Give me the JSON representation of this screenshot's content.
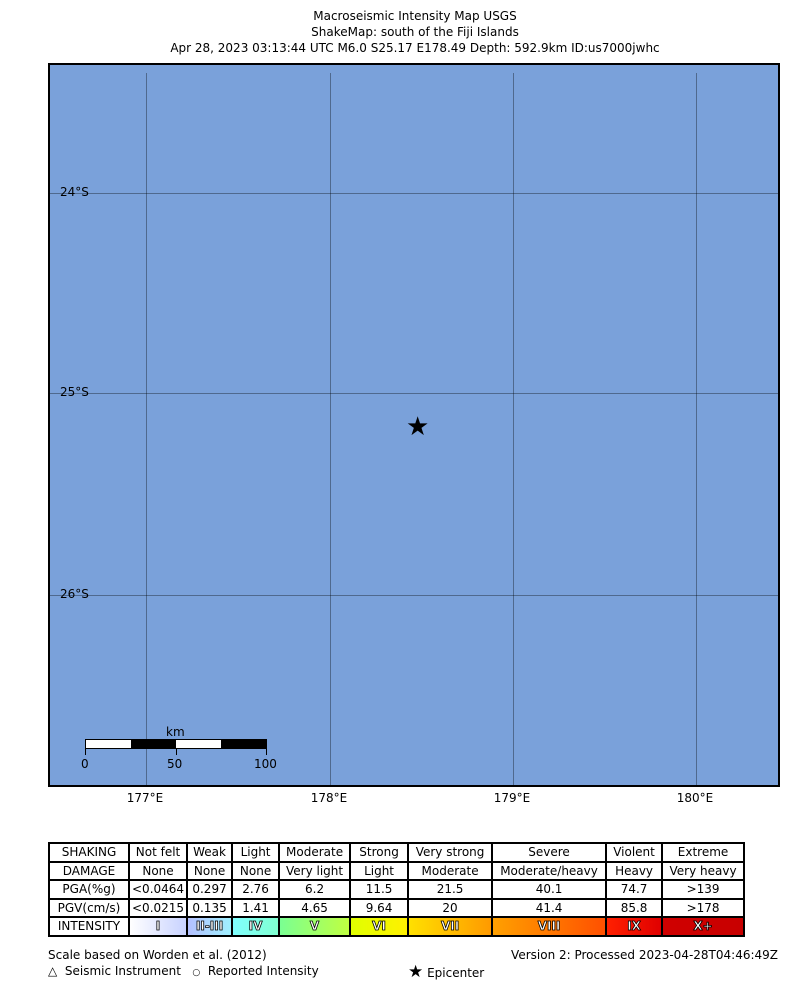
{
  "title": {
    "line1": "Macroseismic Intensity Map USGS",
    "line2": "ShakeMap: south of the Fiji Islands",
    "line3": "Apr 28, 2023 03:13:44 UTC M6.0 S25.17 E178.49 Depth: 592.9km ID:us7000jwhc"
  },
  "map": {
    "ocean_color": "#7aa1da",
    "lat_labels": [
      "24°S",
      "25°S",
      "26°S"
    ],
    "lon_labels": [
      "177°E",
      "178°E",
      "179°E",
      "180°E"
    ],
    "epicenter_icon": "star-icon",
    "scalebar": {
      "unit": "km",
      "ticks": [
        "0",
        "50",
        "100"
      ]
    }
  },
  "legend": {
    "rows": [
      {
        "label": "SHAKING",
        "cells": [
          "Not felt",
          "Weak",
          "Light",
          "Moderate",
          "Strong",
          "Very strong",
          "Severe",
          "Violent",
          "Extreme"
        ]
      },
      {
        "label": "DAMAGE",
        "cells": [
          "None",
          "None",
          "None",
          "Very light",
          "Light",
          "Moderate",
          "Moderate/heavy",
          "Heavy",
          "Very heavy"
        ]
      },
      {
        "label": "PGA(%g)",
        "cells": [
          "<0.0464",
          "0.297",
          "2.76",
          "6.2",
          "11.5",
          "21.5",
          "40.1",
          "74.7",
          ">139"
        ]
      },
      {
        "label": "PGV(cm/s)",
        "cells": [
          "<0.0215",
          "0.135",
          "1.41",
          "4.65",
          "9.64",
          "20",
          "41.4",
          "85.8",
          ">178"
        ]
      }
    ],
    "intensity": {
      "label": "INTENSITY",
      "cells": [
        "I",
        "II-III",
        "IV",
        "V",
        "VI",
        "VII",
        "VIII",
        "IX",
        "X+"
      ],
      "colors": [
        [
          "#ffffff",
          "#c8d2ff"
        ],
        [
          "#b4c0ff",
          "#a0f0ff"
        ],
        [
          "#80ffff",
          "#80ffd0"
        ],
        [
          "#7aff93",
          "#c0ff40"
        ],
        [
          "#e0ff00",
          "#fff000"
        ],
        [
          "#ffe000",
          "#ff9a00"
        ],
        [
          "#ffa000",
          "#ff5000"
        ],
        [
          "#ff2000",
          "#e00000"
        ],
        [
          "#d00000",
          "#c80000"
        ]
      ]
    }
  },
  "footer": {
    "scale_note": "Scale based on Worden et al. (2012)",
    "version": "Version 2: Processed 2023-04-28T04:46:49Z",
    "seismic": "Seismic Instrument",
    "reported": "Reported Intensity",
    "epicenter": "Epicenter"
  }
}
